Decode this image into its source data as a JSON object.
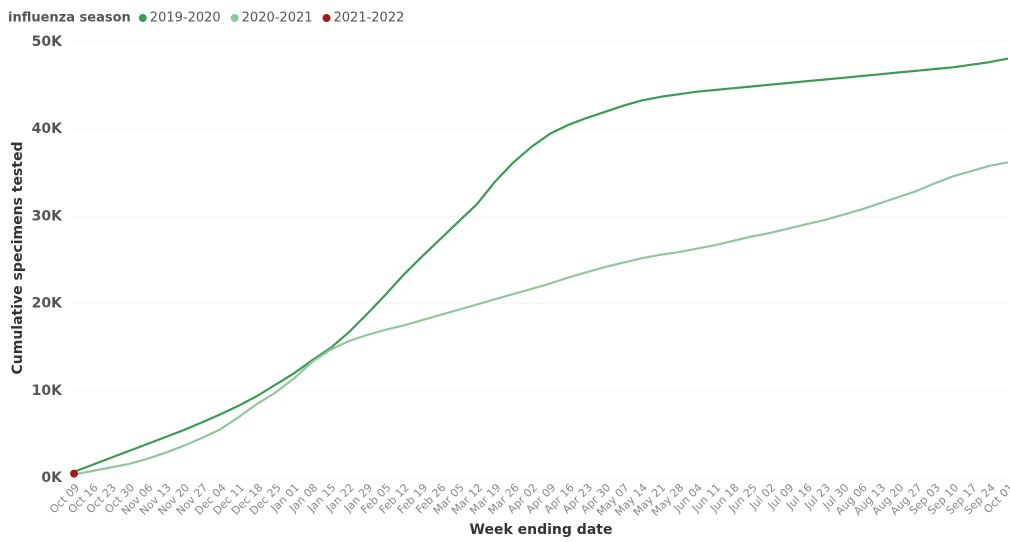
{
  "chart_data": {
    "type": "line",
    "legend_title": "influenza season",
    "x_label": "Week ending date",
    "y_label": "Cumulative specimens tested",
    "categories": [
      "Oct 09",
      "Oct 16",
      "Oct 23",
      "Oct 30",
      "Nov 06",
      "Nov 13",
      "Nov 20",
      "Nov 27",
      "Dec 04",
      "Dec 11",
      "Dec 18",
      "Dec 25",
      "Jan 01",
      "Jan 08",
      "Jan 15",
      "Jan 22",
      "Jan 29",
      "Feb 05",
      "Feb 12",
      "Feb 19",
      "Feb 26",
      "Mar 05",
      "Mar 12",
      "Mar 19",
      "Mar 26",
      "Apr 02",
      "Apr 09",
      "Apr 16",
      "Apr 23",
      "Apr 30",
      "May 07",
      "May 14",
      "May 21",
      "May 28",
      "Jun 04",
      "Jun 11",
      "Jun 18",
      "Jun 25",
      "Jul 02",
      "Jul 09",
      "Jul 16",
      "Jul 23",
      "Jul 30",
      "Aug 06",
      "Aug 13",
      "Aug 20",
      "Aug 27",
      "Sep 03",
      "Sep 10",
      "Sep 17",
      "Sep 24",
      "Oct 01"
    ],
    "series": [
      {
        "name": "2019-2020",
        "color": "#3d9a55",
        "values": [
          700,
          1500,
          2300,
          3100,
          3900,
          4700,
          5500,
          6400,
          7300,
          8300,
          9400,
          10700,
          12000,
          13500,
          14900,
          16700,
          18800,
          21000,
          23300,
          25400,
          27400,
          29400,
          31400,
          34000,
          36200,
          38000,
          39500,
          40500,
          41300,
          42000,
          42700,
          43300,
          43700,
          44000,
          44300,
          44500,
          44700,
          44900,
          45100,
          45300,
          45500,
          45700,
          45900,
          46100,
          46300,
          46500,
          46700,
          46900,
          47100,
          47400,
          47700,
          48100
        ]
      },
      {
        "name": "2020-2021",
        "color": "#92c5a0",
        "values": [
          400,
          800,
          1200,
          1600,
          2200,
          2900,
          3700,
          4600,
          5600,
          7000,
          8500,
          9800,
          11400,
          13300,
          14700,
          15700,
          16400,
          17000,
          17500,
          18100,
          18700,
          19300,
          19900,
          20500,
          21100,
          21700,
          22300,
          23000,
          23600,
          24200,
          24700,
          25200,
          25600,
          25900,
          26300,
          26700,
          27200,
          27700,
          28100,
          28600,
          29100,
          29600,
          30200,
          30800,
          31500,
          32200,
          32900,
          33800,
          34600,
          35200,
          35800,
          36200
        ]
      },
      {
        "name": "2021-2022",
        "color": "#a01c1c",
        "values": [
          500,
          null,
          null,
          null,
          null,
          null,
          null,
          null,
          null,
          null,
          null,
          null,
          null,
          null,
          null,
          null,
          null,
          null,
          null,
          null,
          null,
          null,
          null,
          null,
          null,
          null,
          null,
          null,
          null,
          null,
          null,
          null,
          null,
          null,
          null,
          null,
          null,
          null,
          null,
          null,
          null,
          null,
          null,
          null,
          null,
          null,
          null,
          null,
          null,
          null,
          null,
          null
        ]
      }
    ],
    "ylim": [
      0,
      50000
    ],
    "yticks": [
      {
        "value": 0,
        "label": "0K"
      },
      {
        "value": 10000,
        "label": "10K"
      },
      {
        "value": 20000,
        "label": "20K"
      },
      {
        "value": 30000,
        "label": "30K"
      },
      {
        "value": 40000,
        "label": "40K"
      },
      {
        "value": 50000,
        "label": "50K"
      }
    ],
    "grid": true
  }
}
